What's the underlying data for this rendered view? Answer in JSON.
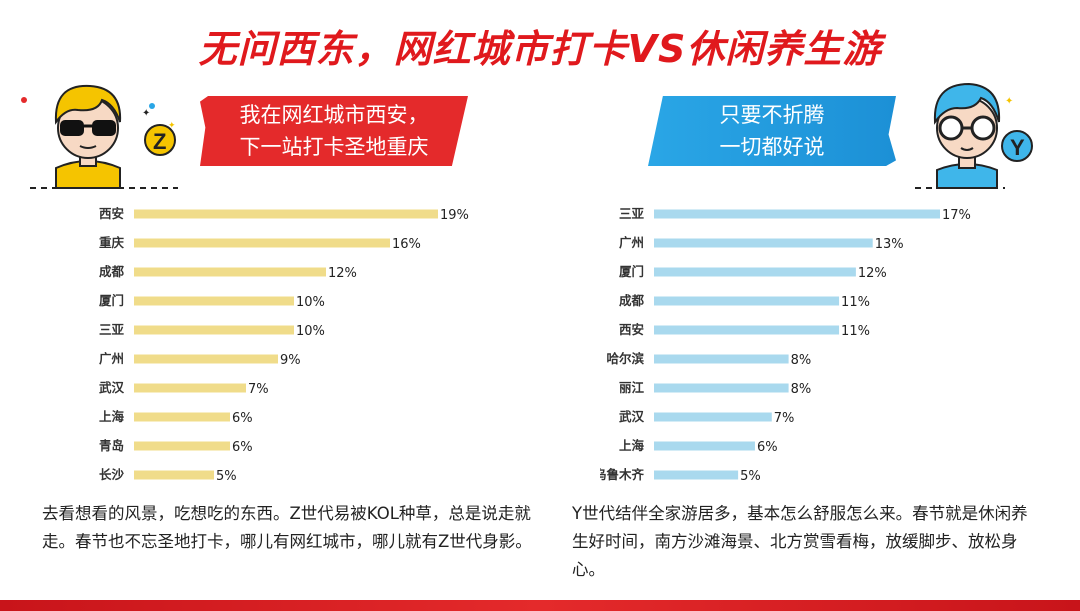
{
  "title": "无问西东，网红城市打卡VS休闲养生游",
  "left": {
    "bubble_line1": "我在网红城市西安，",
    "bubble_line2": "下一站打卡圣地重庆",
    "badge": "Z",
    "description": "去看想看的风景，吃想吃的东西。Z世代易被KOL种草，总是说走就走。春节也不忘圣地打卡，哪儿有网红城市，哪儿就有Z世代身影。"
  },
  "right": {
    "bubble_line1": "只要不折腾",
    "bubble_line2": "一切都好说",
    "badge": "Y",
    "description": "Y世代结伴全家游居多，基本怎么舒服怎么来。春节就是休闲养生好时间，南方沙滩海景、北方赏雪看梅，放缓脚步、放松身心。"
  },
  "colors": {
    "title": "#e0191d",
    "left_bar": "#f0dc8a",
    "right_bar": "#a9d9ee",
    "accent_red": "#e42a2b",
    "accent_blue": "#2aa6e6"
  },
  "chart_data": [
    {
      "type": "bar",
      "orientation": "horizontal",
      "categories": [
        "西安",
        "重庆",
        "成都",
        "厦门",
        "三亚",
        "广州",
        "武汉",
        "上海",
        "青岛",
        "长沙"
      ],
      "values": [
        19,
        16,
        12,
        10,
        10,
        9,
        7,
        6,
        6,
        5
      ],
      "value_labels": [
        "19%",
        "16%",
        "12%",
        "10%",
        "10%",
        "9%",
        "7%",
        "6%",
        "6%",
        "5%"
      ],
      "xlim": [
        0,
        19
      ],
      "grid": false
    },
    {
      "type": "bar",
      "orientation": "horizontal",
      "categories": [
        "三亚",
        "广州",
        "厦门",
        "成都",
        "西安",
        "哈尔滨",
        "丽江",
        "武汉",
        "上海",
        "乌鲁木齐"
      ],
      "values": [
        17,
        13,
        12,
        11,
        11,
        8,
        8,
        7,
        6,
        5
      ],
      "value_labels": [
        "17%",
        "13%",
        "12%",
        "11%",
        "11%",
        "8%",
        "8%",
        "7%",
        "6%",
        "5%"
      ],
      "xlim": [
        0,
        17
      ],
      "grid": false
    }
  ]
}
